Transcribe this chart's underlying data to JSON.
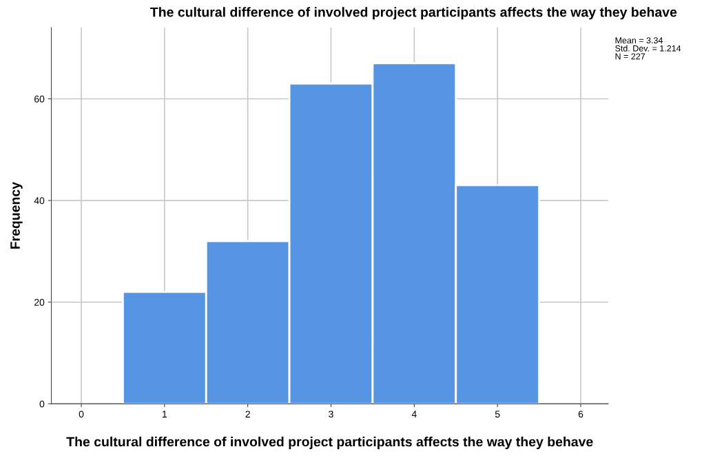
{
  "chart_data": {
    "type": "histogram",
    "title": "The cultural difference of involved project participants affects the way they behave",
    "xlabel": "The cultural difference of involved project participants affects the way they behave",
    "ylabel": "Frequency",
    "bins": [
      0.5,
      1.5,
      2.5,
      3.5,
      4.5,
      5.5
    ],
    "values": [
      22,
      32,
      63,
      67,
      43
    ],
    "color": "#5595e3",
    "xlim": [
      -0.36,
      6.33
    ],
    "xticks": [
      0,
      1,
      2,
      3,
      4,
      5,
      6
    ],
    "ylim": [
      0,
      74
    ],
    "yticks": [
      0,
      20,
      40,
      60
    ],
    "grid": true,
    "legend": false,
    "annotations": [
      "Mean = 3.34",
      "Std. Dev. = 1.214",
      "N = 227"
    ]
  }
}
